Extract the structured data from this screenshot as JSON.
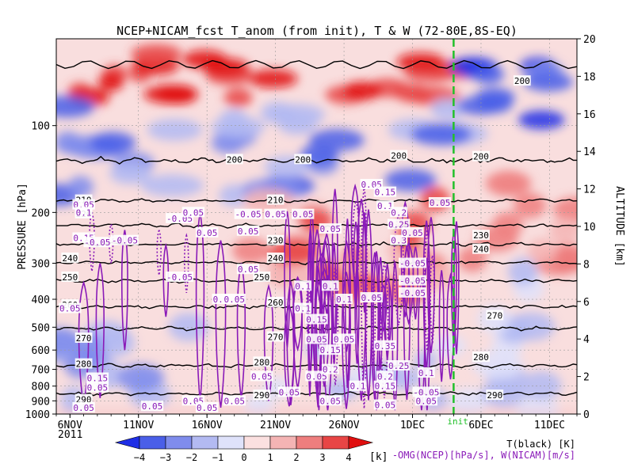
{
  "chart_data": {
    "type": "heatmap",
    "title": "NCEP+NICAM_fcst T_anom (from init), T & W  (72-80E,8S-EQ)",
    "ylabel": "PRESSURE [hPa]",
    "y2label": "ALTITUDE [km]",
    "xlim": [
      "2011-11-05",
      "2011-12-13"
    ],
    "ylim_pressure": [
      1000,
      50
    ],
    "ylim_altitude": [
      0,
      20
    ],
    "x_ticks": [
      "6NOV",
      "11NOV",
      "16NOV",
      "21NOV",
      "26NOV",
      "1DEC",
      "6DEC",
      "11DEC"
    ],
    "x_year_label": "2011",
    "pressure_ticks": [
      100,
      200,
      300,
      400,
      500,
      600,
      700,
      800,
      900,
      1000
    ],
    "altitude_ticks": [
      0,
      2,
      4,
      6,
      8,
      10,
      12,
      14,
      16,
      18,
      20
    ],
    "init_date": "2011-12-04",
    "init_label": "init",
    "grid": true,
    "colorbar": {
      "levels": [
        -4,
        -3,
        -2,
        -1,
        0,
        1,
        2,
        3,
        4
      ],
      "unit": "[k]",
      "colors": [
        "#1e2ee6",
        "#4a5fe8",
        "#7f8cec",
        "#b3baf2",
        "#dfe2fa",
        "#fbe0e0",
        "#f4b4b4",
        "#ee7e7e",
        "#e84545",
        "#e00f0f"
      ]
    },
    "legend": {
      "temperature": "T(black) [K]",
      "vertical_motion": "-OMG(NCEP)[hPa/s], W(NICAM)[m/s]"
    },
    "temperature_contours": [
      {
        "value": 290,
        "pressure": 850
      },
      {
        "value": 280,
        "pressure": 680
      },
      {
        "value": 270,
        "pressure": 505
      },
      {
        "value": 260,
        "pressure": 425
      },
      {
        "value": 250,
        "pressure": 345
      },
      {
        "value": 240,
        "pressure": 298
      },
      {
        "value": 230,
        "pressure": 258
      },
      {
        "value": 220,
        "pressure": 222
      },
      {
        "value": 210,
        "pressure": 182
      },
      {
        "value": 200,
        "pressure": 132
      }
    ],
    "temperature_labels": [
      {
        "text": "200",
        "date": "2011-11-18",
        "pressure": 131
      },
      {
        "text": "200",
        "date": "2011-11-23",
        "pressure": 131
      },
      {
        "text": "200",
        "date": "2011-11-30",
        "pressure": 127
      },
      {
        "text": "200",
        "date": "2011-12-06",
        "pressure": 128
      },
      {
        "text": "200",
        "date": "2011-12-09",
        "pressure": 70
      },
      {
        "text": "210",
        "date": "2011-11-07",
        "pressure": 181
      },
      {
        "text": "210",
        "date": "2011-11-21",
        "pressure": 181
      },
      {
        "text": "220",
        "date": "2011-11-07",
        "pressure": 202
      },
      {
        "text": "230",
        "date": "2011-11-21",
        "pressure": 250
      },
      {
        "text": "230",
        "date": "2011-12-06",
        "pressure": 240
      },
      {
        "text": "240",
        "date": "2011-11-06",
        "pressure": 288
      },
      {
        "text": "240",
        "date": "2011-11-21",
        "pressure": 288
      },
      {
        "text": "240",
        "date": "2011-12-06",
        "pressure": 268
      },
      {
        "text": "250",
        "date": "2011-11-06",
        "pressure": 335
      },
      {
        "text": "250",
        "date": "2011-11-20",
        "pressure": 335
      },
      {
        "text": "260",
        "date": "2011-11-06",
        "pressure": 418
      },
      {
        "text": "260",
        "date": "2011-11-21",
        "pressure": 410
      },
      {
        "text": "270",
        "date": "2011-11-07",
        "pressure": 545
      },
      {
        "text": "270",
        "date": "2011-11-21",
        "pressure": 540
      },
      {
        "text": "270",
        "date": "2011-12-07",
        "pressure": 455
      },
      {
        "text": "280",
        "date": "2011-11-07",
        "pressure": 670
      },
      {
        "text": "280",
        "date": "2011-11-20",
        "pressure": 660
      },
      {
        "text": "280",
        "date": "2011-12-06",
        "pressure": 635
      },
      {
        "text": "290",
        "date": "2011-11-20",
        "pressure": 860
      },
      {
        "text": "290",
        "date": "2011-12-07",
        "pressure": 860
      },
      {
        "text": "290",
        "date": "2011-11-07",
        "pressure": 890
      }
    ],
    "w_contour_labels": [
      {
        "text": "0.05",
        "date": "2011-11-07",
        "pressure": 188
      },
      {
        "text": "0.1",
        "date": "2011-11-07",
        "pressure": 200
      },
      {
        "text": "-0.05",
        "date": "2011-11-14",
        "pressure": 210
      },
      {
        "text": "0.05",
        "date": "2011-11-15",
        "pressure": 200
      },
      {
        "text": "0.15",
        "date": "2011-11-07",
        "pressure": 245
      },
      {
        "text": "-0.05",
        "date": "2011-11-08",
        "pressure": 254
      },
      {
        "text": "0.05",
        "date": "2011-11-16",
        "pressure": 235
      },
      {
        "text": "-0.05",
        "date": "2011-11-19",
        "pressure": 203
      },
      {
        "text": "0.05",
        "date": "2011-11-21",
        "pressure": 203
      },
      {
        "text": "0.05",
        "date": "2011-11-23",
        "pressure": 203
      },
      {
        "text": "0.05",
        "date": "2011-11-19",
        "pressure": 232
      },
      {
        "text": "0.05",
        "date": "2011-11-25",
        "pressure": 228
      },
      {
        "text": "0.05",
        "date": "2011-11-28",
        "pressure": 160
      },
      {
        "text": "0.1",
        "date": "2011-11-29",
        "pressure": 190
      },
      {
        "text": "0.15",
        "date": "2011-11-29",
        "pressure": 170
      },
      {
        "text": "0.2",
        "date": "2011-11-30",
        "pressure": 200
      },
      {
        "text": "0.25",
        "date": "2011-11-30",
        "pressure": 220
      },
      {
        "text": "0.3",
        "date": "2011-11-30",
        "pressure": 250
      },
      {
        "text": "0.05",
        "date": "2011-12-03",
        "pressure": 185
      },
      {
        "text": "0.05",
        "date": "2011-12-01",
        "pressure": 235
      },
      {
        "text": "-0.05",
        "date": "2011-12-01",
        "pressure": 300
      },
      {
        "text": "-0.05",
        "date": "2011-12-01",
        "pressure": 345
      },
      {
        "text": "-0.05",
        "date": "2011-12-01",
        "pressure": 380
      },
      {
        "text": "-0.05",
        "date": "2011-11-14",
        "pressure": 335
      },
      {
        "text": "0.05",
        "date": "2011-11-19",
        "pressure": 315
      },
      {
        "text": "0.1",
        "date": "2011-11-17",
        "pressure": 400
      },
      {
        "text": "0.05",
        "date": "2011-11-18",
        "pressure": 400
      },
      {
        "text": "0.1",
        "date": "2011-11-23",
        "pressure": 360
      },
      {
        "text": "0.1",
        "date": "2011-11-25",
        "pressure": 360
      },
      {
        "text": "0.05",
        "date": "2011-11-28",
        "pressure": 395
      },
      {
        "text": "0.1",
        "date": "2011-11-26",
        "pressure": 400
      },
      {
        "text": "0.1",
        "date": "2011-11-23",
        "pressure": 430
      },
      {
        "text": "0.15",
        "date": "2011-11-24",
        "pressure": 470
      },
      {
        "text": "0.05",
        "date": "2011-11-24",
        "pressure": 550
      },
      {
        "text": "0.05",
        "date": "2011-11-26",
        "pressure": 550
      },
      {
        "text": "0.05",
        "date": "2011-11-06",
        "pressure": 430
      },
      {
        "text": "0.05",
        "date": "2011-11-24",
        "pressure": 740
      },
      {
        "text": "0.15",
        "date": "2011-11-25",
        "pressure": 600
      },
      {
        "text": "0.2",
        "date": "2011-11-25",
        "pressure": 700
      },
      {
        "text": "0.35",
        "date": "2011-11-29",
        "pressure": 580
      },
      {
        "text": "0.25",
        "date": "2011-11-30",
        "pressure": 680
      },
      {
        "text": "0.2",
        "date": "2011-11-29",
        "pressure": 740
      },
      {
        "text": "0.1",
        "date": "2011-12-02",
        "pressure": 720
      },
      {
        "text": "0.15",
        "date": "2011-11-08",
        "pressure": 750
      },
      {
        "text": "0.05",
        "date": "2011-11-08",
        "pressure": 810
      },
      {
        "text": "0.05",
        "date": "2011-11-20",
        "pressure": 740
      },
      {
        "text": "0.05",
        "date": "2011-11-22",
        "pressure": 840
      },
      {
        "text": "0.1",
        "date": "2011-11-27",
        "pressure": 800
      },
      {
        "text": "0.15",
        "date": "2011-11-29",
        "pressure": 800
      },
      {
        "text": "-0.05",
        "date": "2011-12-02",
        "pressure": 840
      },
      {
        "text": "0.05",
        "date": "2011-11-12",
        "pressure": 940
      },
      {
        "text": "0.05",
        "date": "2011-11-15",
        "pressure": 900
      },
      {
        "text": "0.05",
        "date": "2011-11-16",
        "pressure": 950
      },
      {
        "text": "0.05",
        "date": "2011-11-18",
        "pressure": 900
      },
      {
        "text": "0.05",
        "date": "2011-11-25",
        "pressure": 900
      },
      {
        "text": "0.05",
        "date": "2011-11-29",
        "pressure": 930
      },
      {
        "text": "0.05",
        "date": "2011-11-07",
        "pressure": 950
      },
      {
        "text": "0.05",
        "date": "2011-12-02",
        "pressure": 900
      },
      {
        "text": "-0.05",
        "date": "2011-11-10",
        "pressure": 250
      }
    ]
  }
}
